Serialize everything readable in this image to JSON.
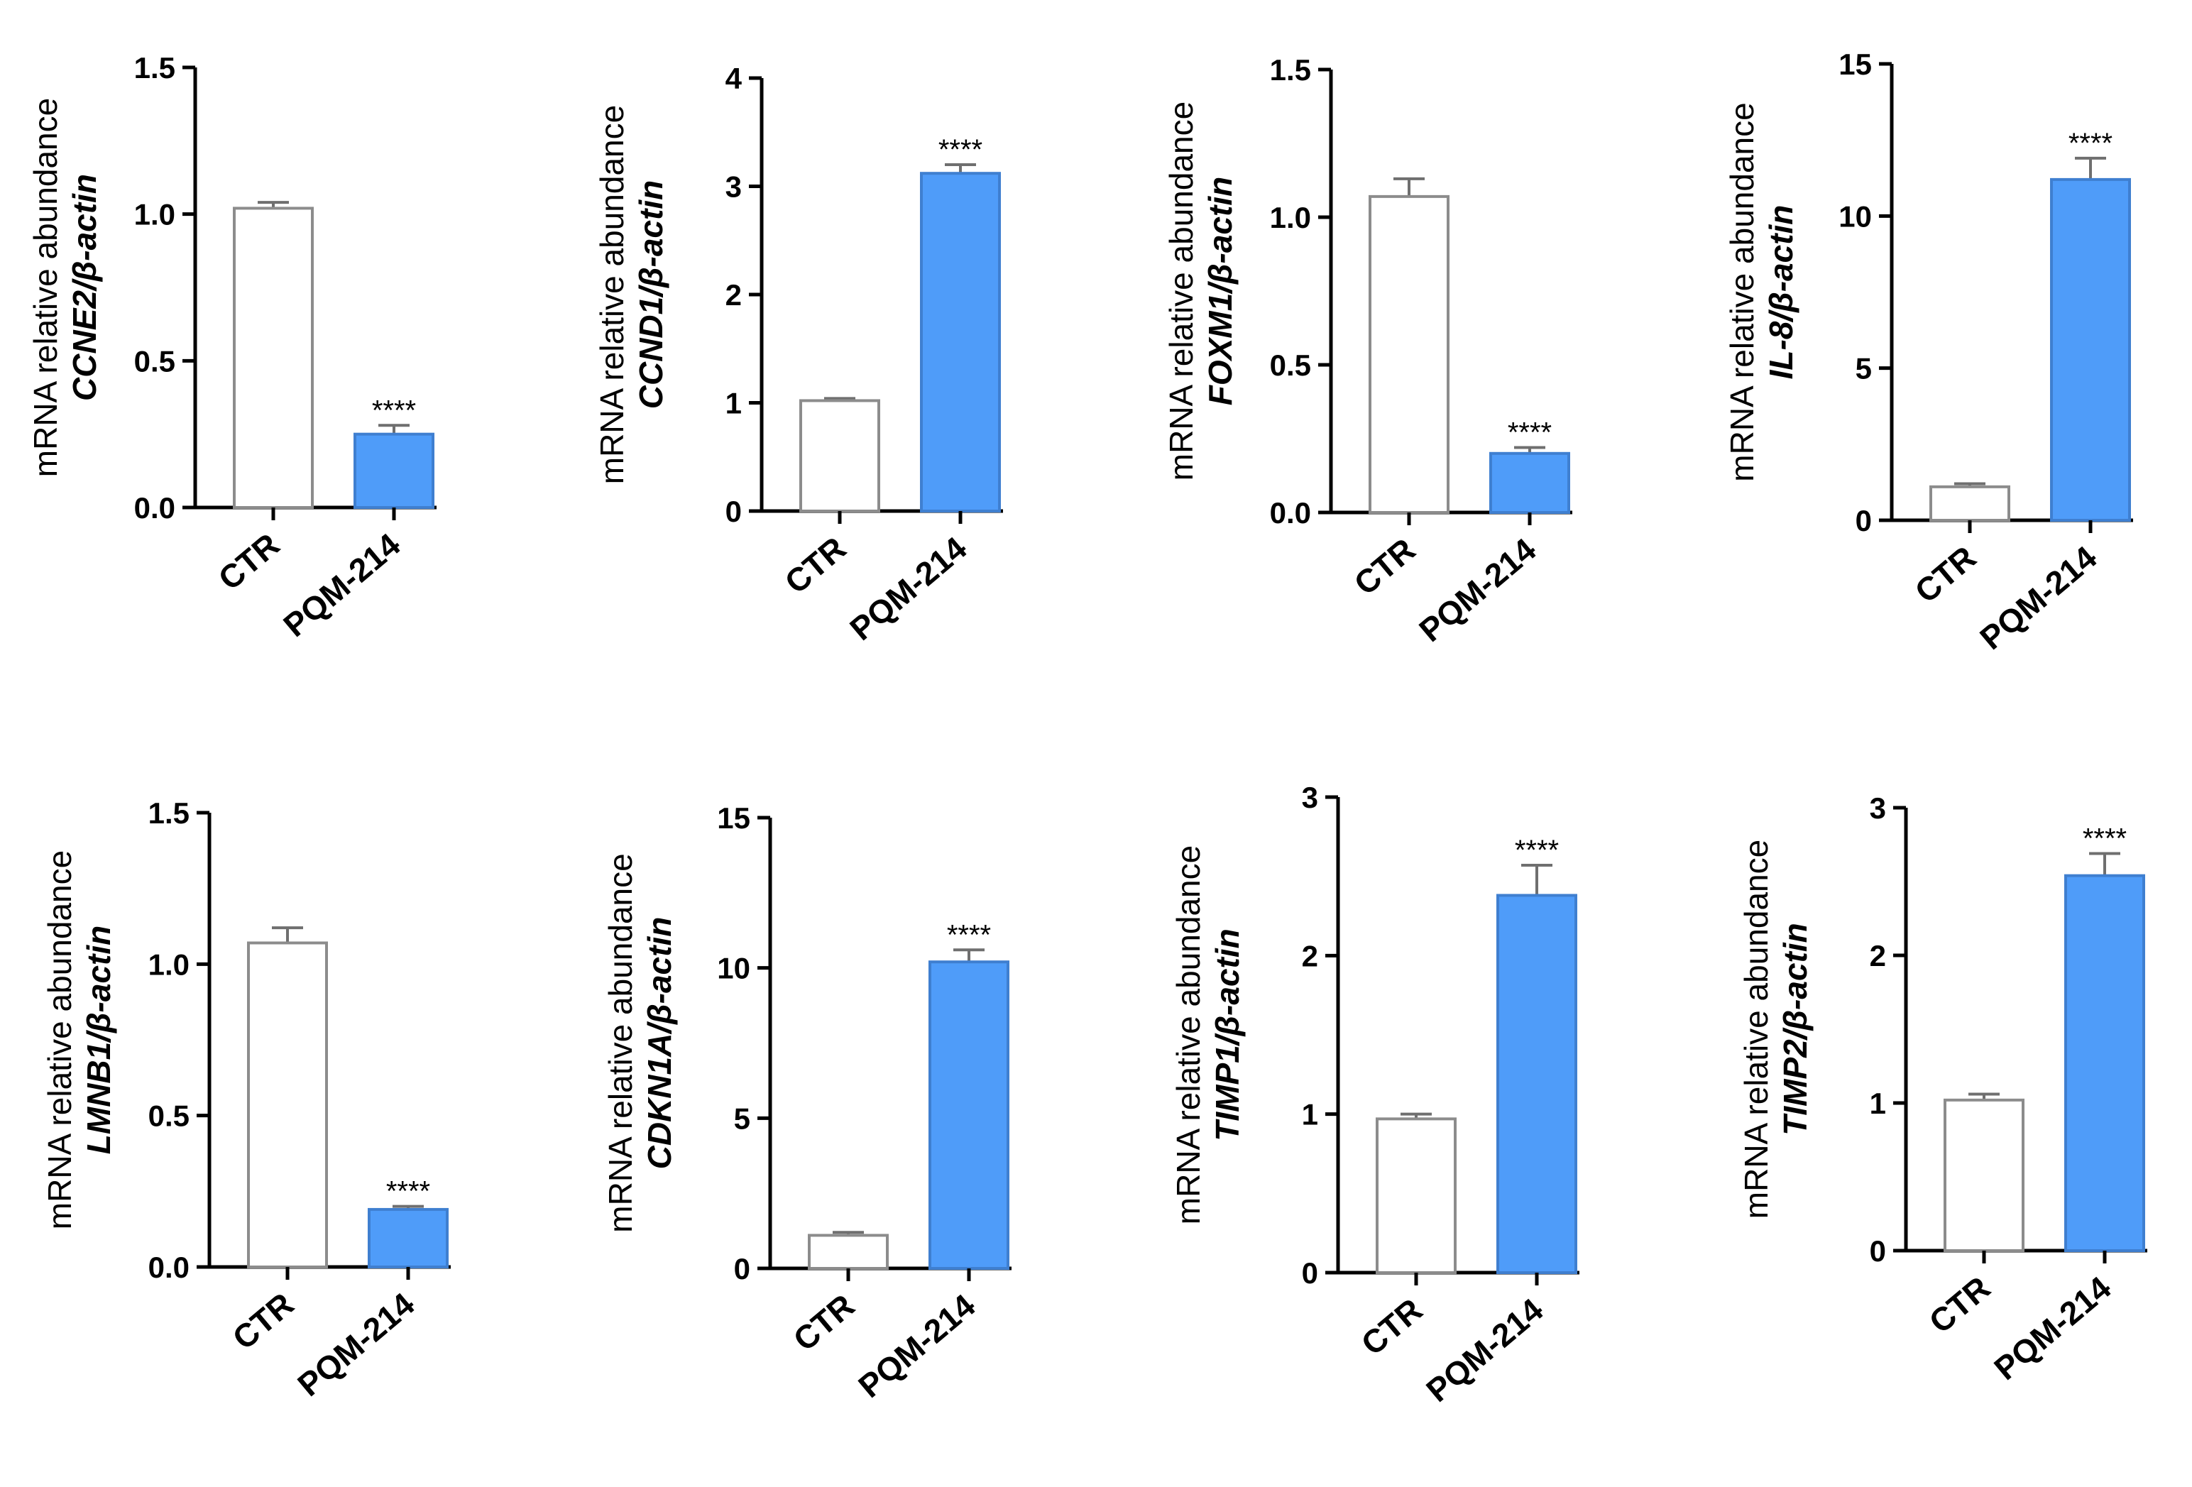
{
  "style": {
    "ctr_fill": "#ffffff",
    "ctr_stroke": "#8c8c8c",
    "treat_fill": "#4f9cf9",
    "treat_stroke": "#3f7fd0",
    "axis_color": "#000000"
  },
  "chart_data": [
    {
      "type": "bar",
      "ylabel_main": "mRNA relative abundance",
      "ylabel_gene": "CCNE2/β-actin",
      "categories": [
        "CTR",
        "PQM-214"
      ],
      "values": [
        1.02,
        0.25
      ],
      "errors": [
        0.02,
        0.03
      ],
      "significance": [
        "",
        "****"
      ],
      "ylim": [
        0,
        1.5
      ],
      "yticks": [
        0,
        0.5,
        1.0,
        1.5
      ],
      "ytick_labels": [
        "0.0",
        "0.5",
        "1.0",
        "1.5"
      ]
    },
    {
      "type": "bar",
      "ylabel_main": "mRNA relative abundance",
      "ylabel_gene": "CCND1/β-actin",
      "categories": [
        "CTR",
        "PQM-214"
      ],
      "values": [
        1.02,
        3.12
      ],
      "errors": [
        0.02,
        0.08
      ],
      "significance": [
        "",
        "****"
      ],
      "ylim": [
        0,
        4
      ],
      "yticks": [
        0,
        1,
        2,
        3,
        4
      ],
      "ytick_labels": [
        "0",
        "1",
        "2",
        "3",
        "4"
      ]
    },
    {
      "type": "bar",
      "ylabel_main": "mRNA relative abundance",
      "ylabel_gene": "FOXM1/β-actin",
      "categories": [
        "CTR",
        "PQM-214"
      ],
      "values": [
        1.07,
        0.2
      ],
      "errors": [
        0.06,
        0.02
      ],
      "significance": [
        "",
        "****"
      ],
      "ylim": [
        0,
        1.5
      ],
      "yticks": [
        0,
        0.5,
        1.0,
        1.5
      ],
      "ytick_labels": [
        "0.0",
        "0.5",
        "1.0",
        "1.5"
      ]
    },
    {
      "type": "bar",
      "ylabel_main": "mRNA relative abundance",
      "ylabel_gene": "IL-8/β-actin",
      "categories": [
        "CTR",
        "PQM-214"
      ],
      "values": [
        1.1,
        11.2
      ],
      "errors": [
        0.1,
        0.7
      ],
      "significance": [
        "",
        "****"
      ],
      "ylim": [
        0,
        15
      ],
      "yticks": [
        0,
        5,
        10,
        15
      ],
      "ytick_labels": [
        "0",
        "5",
        "10",
        "15"
      ]
    },
    {
      "type": "bar",
      "ylabel_main": "mRNA relative abundance",
      "ylabel_gene": "LMNB1/β-actin",
      "categories": [
        "CTR",
        "PQM-214"
      ],
      "values": [
        1.07,
        0.19
      ],
      "errors": [
        0.05,
        0.01
      ],
      "significance": [
        "",
        "****"
      ],
      "ylim": [
        0,
        1.5
      ],
      "yticks": [
        0,
        0.5,
        1.0,
        1.5
      ],
      "ytick_labels": [
        "0.0",
        "0.5",
        "1.0",
        "1.5"
      ]
    },
    {
      "type": "bar",
      "ylabel_main": "mRNA relative abundance",
      "ylabel_gene": "CDKN1A/β-actin",
      "categories": [
        "CTR",
        "PQM-214"
      ],
      "values": [
        1.1,
        10.2
      ],
      "errors": [
        0.1,
        0.4
      ],
      "significance": [
        "",
        "****"
      ],
      "ylim": [
        0,
        15
      ],
      "yticks": [
        0,
        5,
        10,
        15
      ],
      "ytick_labels": [
        "0",
        "5",
        "10",
        "15"
      ]
    },
    {
      "type": "bar",
      "ylabel_main": "mRNA relative abundance",
      "ylabel_gene": "TIMP1/β-actin",
      "categories": [
        "CTR",
        "PQM-214"
      ],
      "values": [
        0.97,
        2.38
      ],
      "errors": [
        0.03,
        0.19
      ],
      "significance": [
        "",
        "****"
      ],
      "ylim": [
        0,
        3
      ],
      "yticks": [
        0,
        1,
        2,
        3
      ],
      "ytick_labels": [
        "0",
        "1",
        "2",
        "3"
      ]
    },
    {
      "type": "bar",
      "ylabel_main": "mRNA relative abundance",
      "ylabel_gene": "TIMP2/β-actin",
      "categories": [
        "CTR",
        "PQM-214"
      ],
      "values": [
        1.02,
        2.54
      ],
      "errors": [
        0.04,
        0.15
      ],
      "significance": [
        "",
        "****"
      ],
      "ylim": [
        0,
        3
      ],
      "yticks": [
        0,
        1,
        2,
        3
      ],
      "ytick_labels": [
        "0",
        "1",
        "2",
        "3"
      ]
    }
  ]
}
